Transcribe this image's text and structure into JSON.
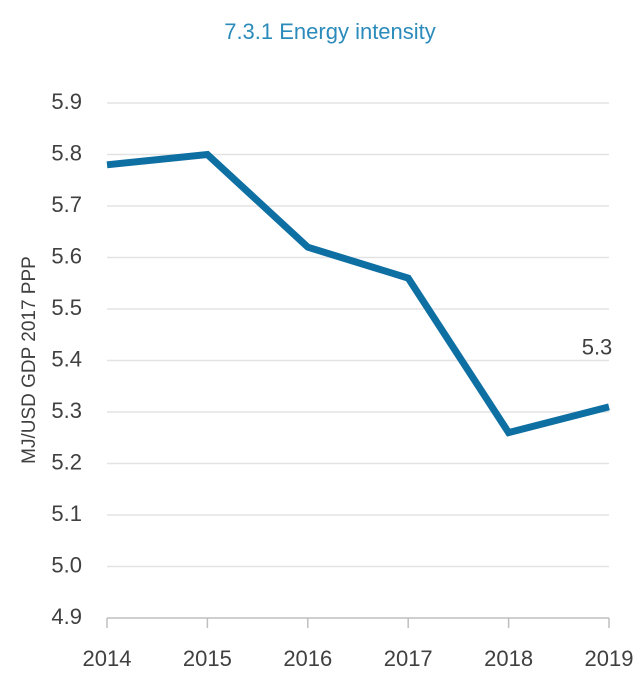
{
  "chart_data": {
    "type": "line",
    "title": "7.3.1 Energy intensity",
    "y_label": "MJ/USD GDP 2017 PPP",
    "x": [
      2014,
      2015,
      2016,
      2017,
      2018,
      2019
    ],
    "values": [
      5.78,
      5.8,
      5.62,
      5.56,
      5.26,
      5.31
    ],
    "value_labels": [
      null,
      null,
      null,
      null,
      null,
      "5.3"
    ],
    "color": "#0e6fa3",
    "xlim": [
      2014,
      2019
    ],
    "xticks": [
      2014,
      2015,
      2016,
      2017,
      2018,
      2019
    ],
    "ylim": [
      4.9,
      5.9
    ],
    "yticks": [
      4.9,
      {
        "value": 5,
        "label": "5.0"
      },
      5.1,
      5.2,
      5.3,
      5.4,
      5.5,
      5.6,
      5.7,
      5.8,
      5.9
    ],
    "grid": true
  }
}
